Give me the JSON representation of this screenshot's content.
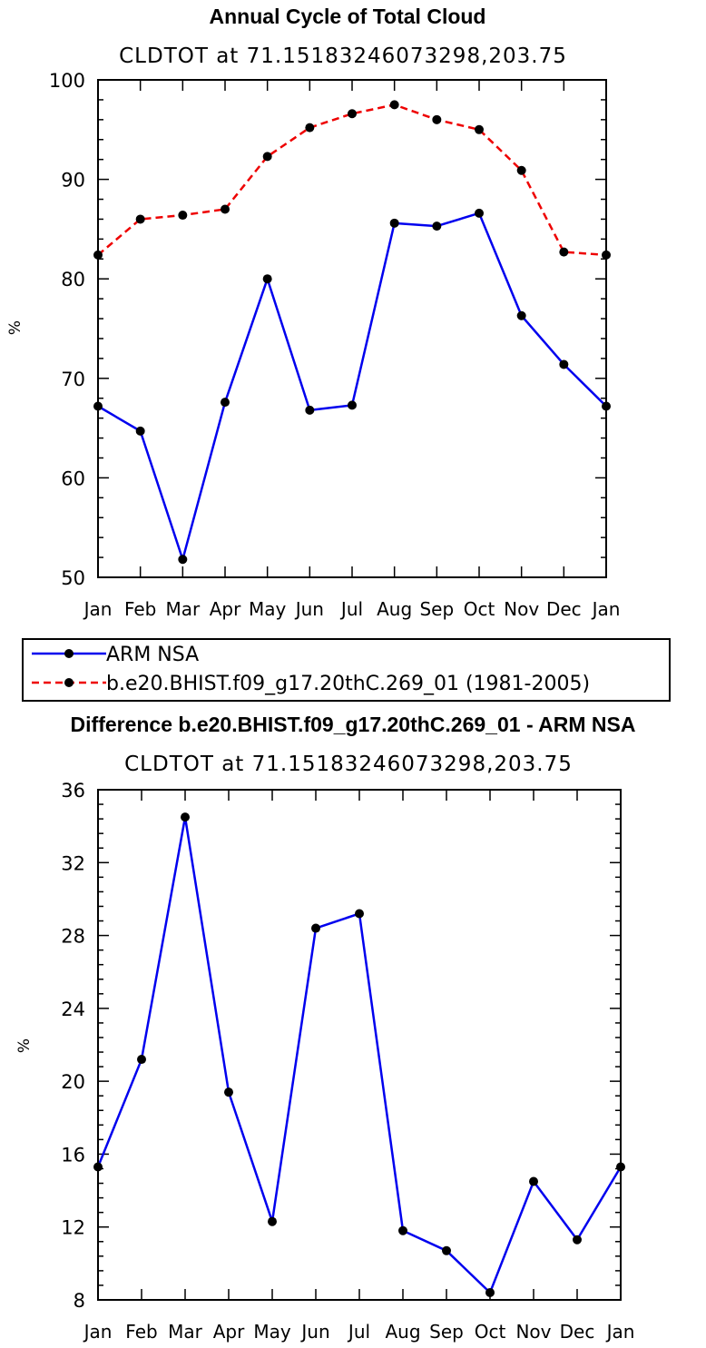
{
  "chart_data": [
    {
      "type": "line",
      "title": "Annual Cycle of Total Cloud",
      "subtitle": "CLDTOT at 71.15183246073298,203.75",
      "xlabel": "",
      "ylabel": "%",
      "categories": [
        "Jan",
        "Feb",
        "Mar",
        "Apr",
        "May",
        "Jun",
        "Jul",
        "Aug",
        "Sep",
        "Oct",
        "Nov",
        "Dec",
        "Jan"
      ],
      "ylim": [
        50,
        100
      ],
      "yticks": [
        50,
        60,
        70,
        80,
        90,
        100
      ],
      "series": [
        {
          "name": "ARM NSA",
          "color": "#0000ee",
          "dash": "solid",
          "values": [
            67.2,
            64.7,
            51.8,
            67.6,
            80.0,
            66.8,
            67.3,
            85.6,
            85.3,
            86.6,
            76.3,
            71.4,
            67.2
          ]
        },
        {
          "name": "b.e20.BHIST.f09_g17.20thC.269_01 (1981-2005)",
          "color": "#ee0000",
          "dash": "dashed",
          "values": [
            82.4,
            86.0,
            86.4,
            87.0,
            92.3,
            95.2,
            96.6,
            97.5,
            96.0,
            95.0,
            90.9,
            82.7,
            82.4
          ]
        }
      ],
      "legend": "below"
    },
    {
      "type": "line",
      "title": "Difference b.e20.BHIST.f09_g17.20thC.269_01 - ARM NSA",
      "subtitle": "CLDTOT at 71.15183246073298,203.75",
      "xlabel": "",
      "ylabel": "%",
      "categories": [
        "Jan",
        "Feb",
        "Mar",
        "Apr",
        "May",
        "Jun",
        "Jul",
        "Aug",
        "Sep",
        "Oct",
        "Nov",
        "Dec",
        "Jan"
      ],
      "ylim": [
        8,
        36
      ],
      "yticks": [
        8,
        12,
        16,
        20,
        24,
        28,
        32,
        36
      ],
      "series": [
        {
          "color": "#0000ee",
          "dash": "solid",
          "values": [
            15.3,
            21.2,
            34.5,
            19.4,
            12.3,
            28.4,
            29.2,
            11.8,
            10.7,
            8.4,
            14.5,
            11.3,
            15.3
          ]
        }
      ]
    }
  ]
}
